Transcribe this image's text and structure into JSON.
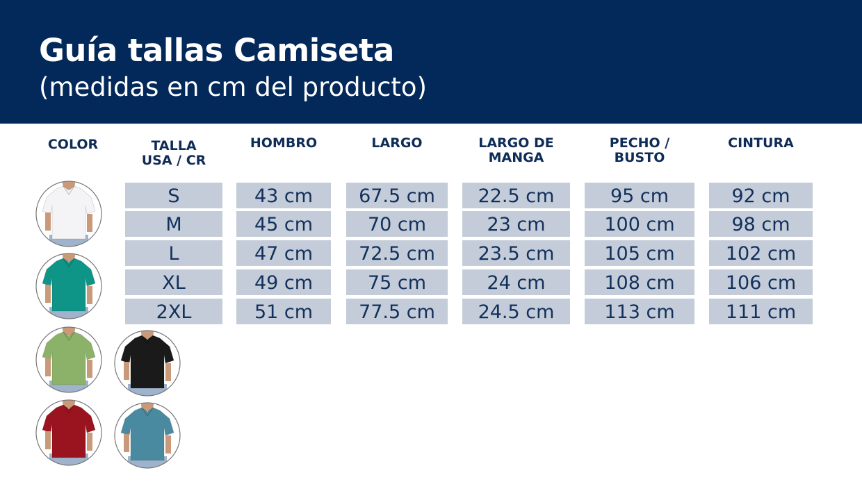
{
  "header": {
    "title": "Guía tallas Camiseta",
    "subtitle": "(medidas en cm del producto)"
  },
  "columns": [
    "COLOR",
    "TALLA\nUSA / CR",
    "HOMBRO",
    "LARGO",
    "LARGO DE\nMANGA",
    "PECHO /\nBUSTO",
    "CINTURA"
  ],
  "rows": [
    [
      "S",
      "43 cm",
      "67.5 cm",
      "22.5 cm",
      "95 cm",
      "92 cm"
    ],
    [
      "M",
      "45 cm",
      "70 cm",
      "23 cm",
      "100 cm",
      "98 cm"
    ],
    [
      "L",
      "47 cm",
      "72.5 cm",
      "23.5 cm",
      "105 cm",
      "102 cm"
    ],
    [
      "XL",
      "49 cm",
      "75 cm",
      "24 cm",
      "108 cm",
      "106 cm"
    ],
    [
      "2XL",
      "51 cm",
      "77.5 cm",
      "24.5 cm",
      "113 cm",
      "111 cm"
    ]
  ],
  "colors": [
    {
      "name": "white-shirt",
      "hex": "#f4f4f6"
    },
    {
      "name": "teal-shirt",
      "hex": "#0f9488"
    },
    {
      "name": "green-shirt",
      "hex": "#8cb26a"
    },
    {
      "name": "black-shirt",
      "hex": "#1a1a1a"
    },
    {
      "name": "red-shirt",
      "hex": "#9a1420"
    },
    {
      "name": "blue-shirt",
      "hex": "#4a8aa0"
    }
  ],
  "theme": {
    "header_bg": "#03285a",
    "cell_bg": "#c3ccd8",
    "text": "#0f2c57"
  }
}
